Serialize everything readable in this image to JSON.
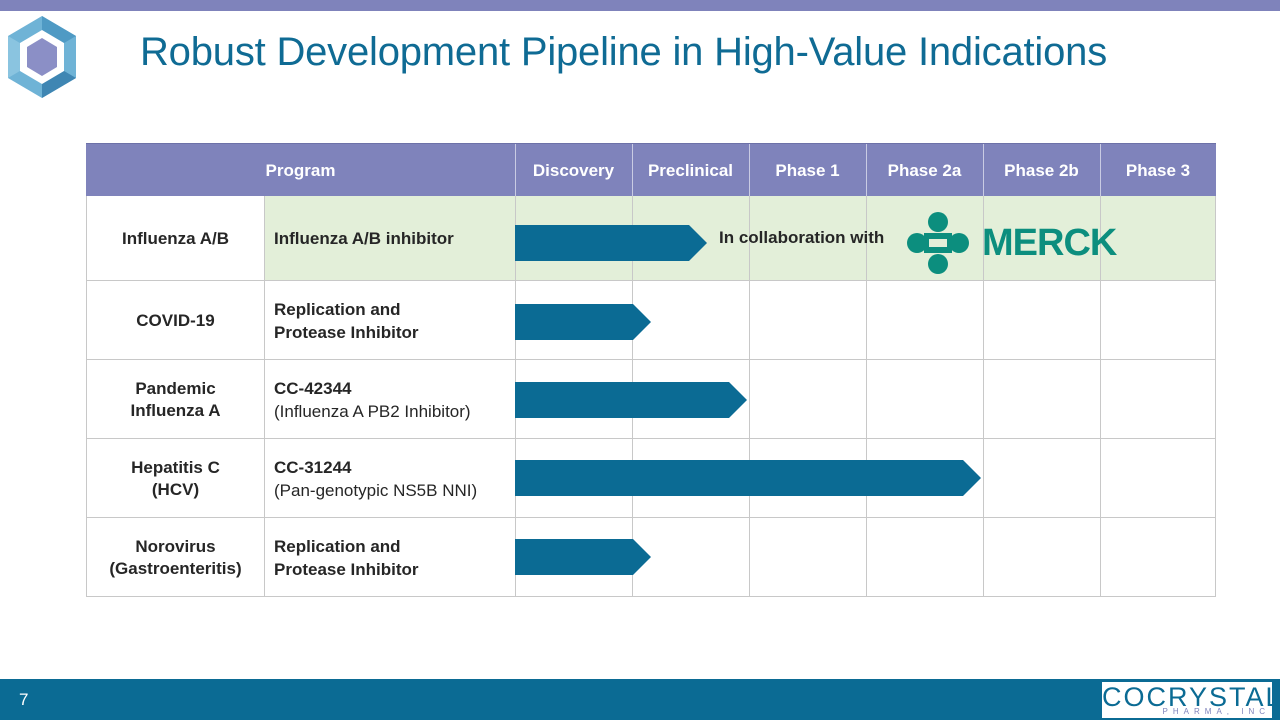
{
  "slide": {
    "title": "Robust Development Pipeline in High-Value Indications",
    "page_number": "7",
    "accent_color": "#7f83bb",
    "brand_color": "#0b6b94",
    "bar_color": "#0b6b94",
    "highlight_color": "#e3efd9"
  },
  "table": {
    "headers": [
      "Program",
      "Discovery",
      "Preclinical",
      "Phase 1",
      "Phase 2a",
      "Phase 2b",
      "Phase 3"
    ],
    "rows": [
      {
        "indication": "Influenza A/B",
        "program_line1": "Influenza A/B inhibitor",
        "program_line2": "",
        "progress_stage": "Preclinical",
        "highlight": true
      },
      {
        "indication": "COVID-19",
        "program_line1": "Replication and",
        "program_line2": "Protease Inhibitor",
        "progress_stage": "Discovery",
        "highlight": false
      },
      {
        "indication_line1": "Pandemic",
        "indication_line2": "Influenza A",
        "program_line1": "CC-42344",
        "program_line2": "(Influenza A PB2 Inhibitor)",
        "progress_stage": "Preclinical",
        "highlight": false
      },
      {
        "indication_line1": "Hepatitis C",
        "indication_line2": "(HCV)",
        "program_line1": "CC-31244",
        "program_line2": "(Pan-genotypic NS5B NNI)",
        "progress_stage": "Phase 2a",
        "highlight": false
      },
      {
        "indication_line1": "Norovirus",
        "indication_line2": "(Gastroenteritis)",
        "program_line1": "Replication and",
        "program_line2": "Protease Inhibitor",
        "progress_stage": "Discovery",
        "highlight": false
      }
    ]
  },
  "collaboration": {
    "text": "In collaboration with",
    "partner": "MERCK"
  },
  "footer": {
    "brand_name": "COCRYSTAL",
    "brand_sub": "PHARMA, INC"
  }
}
